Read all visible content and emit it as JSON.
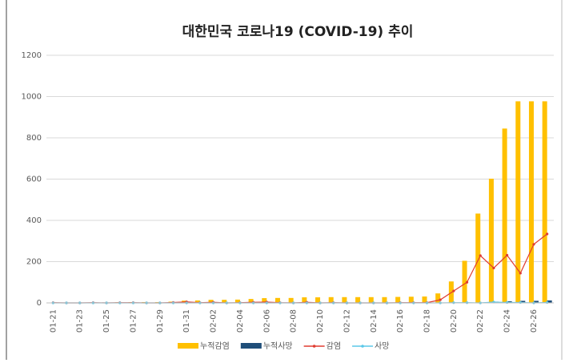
{
  "chart_data": {
    "type": "combo",
    "title": "대한민국 코로나19 (COVID-19) 추이",
    "categories": [
      "01-21",
      null,
      "01-23",
      null,
      "01-25",
      null,
      "01-27",
      null,
      "01-29",
      null,
      "01-31",
      null,
      "02-02",
      null,
      "02-04",
      null,
      "02-06",
      null,
      "02-08",
      null,
      "02-10",
      null,
      "02-12",
      null,
      "02-14",
      null,
      "02-16",
      null,
      "02-18",
      null,
      "02-20",
      null,
      "02-22",
      null,
      "02-24",
      null,
      "02-26",
      null
    ],
    "series": [
      {
        "name": "누적감염",
        "type": "bar",
        "color": "#ffc000",
        "values": [
          1,
          1,
          1,
          2,
          2,
          3,
          4,
          4,
          4,
          6,
          11,
          12,
          15,
          15,
          16,
          19,
          23,
          24,
          24,
          27,
          27,
          28,
          28,
          28,
          28,
          28,
          29,
          30,
          31,
          46,
          104,
          204,
          433,
          602,
          845,
          977,
          977,
          977
        ]
      },
      {
        "name": "누적사망",
        "type": "bar",
        "color": "#1f4e79",
        "values": [
          0,
          0,
          0,
          0,
          0,
          0,
          0,
          0,
          0,
          0,
          0,
          0,
          0,
          0,
          0,
          0,
          0,
          0,
          0,
          0,
          0,
          0,
          0,
          0,
          0,
          0,
          0,
          0,
          0,
          0,
          1,
          2,
          2,
          6,
          8,
          10,
          10,
          12
        ]
      },
      {
        "name": "감염",
        "type": "line",
        "color": "#e03c31",
        "values": [
          1,
          0,
          0,
          1,
          0,
          1,
          1,
          0,
          0,
          2,
          5,
          1,
          3,
          0,
          1,
          3,
          4,
          1,
          0,
          3,
          0,
          1,
          0,
          0,
          0,
          0,
          1,
          1,
          1,
          15,
          58,
          100,
          229,
          169,
          231,
          144,
          284,
          334
        ]
      },
      {
        "name": "사망",
        "type": "line",
        "color": "#5bc8e8",
        "values": [
          0,
          0,
          0,
          0,
          0,
          0,
          0,
          0,
          0,
          0,
          0,
          0,
          0,
          0,
          0,
          0,
          0,
          0,
          0,
          0,
          0,
          0,
          0,
          0,
          0,
          0,
          0,
          0,
          0,
          0,
          1,
          1,
          0,
          4,
          2,
          2,
          0,
          2
        ]
      }
    ],
    "ylim": [
      0,
      1200
    ],
    "yticks": [
      0,
      200,
      400,
      600,
      800,
      1000,
      1200
    ],
    "grid": true,
    "legend": "bottom"
  }
}
